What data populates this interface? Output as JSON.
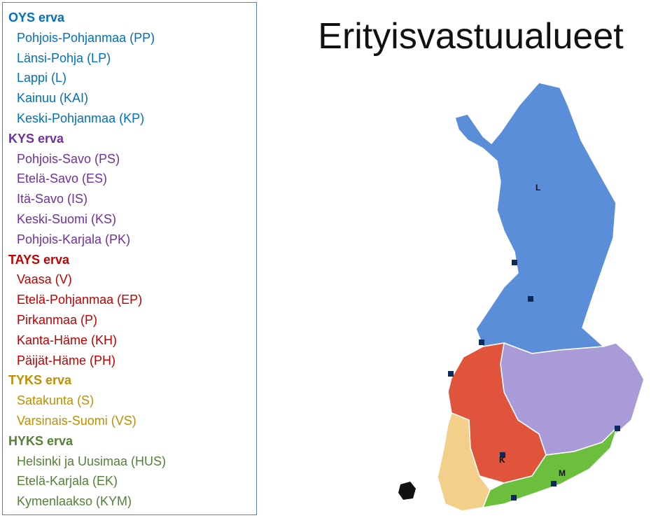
{
  "title": "Erityisvastuualueet",
  "groups": [
    {
      "name": "OYS erva",
      "color": "#0070c0",
      "map_color": "#5b8ed8",
      "items": [
        "Pohjois-Pohjanmaa (PP)",
        "Länsi-Pohja (LP)",
        "Lappi (L)",
        "Kainuu (KAI)",
        "Keski-Pohjanmaa (KP)"
      ]
    },
    {
      "name": "KYS erva",
      "color": "#7030a0",
      "map_color": "#a99bd8",
      "items": [
        "Pohjois-Savo (PS)",
        "Etelä-Savo (ES)",
        "Itä-Savo (IS)",
        "Keski-Suomi (KS)",
        "Pohjois-Karjala (PK)"
      ]
    },
    {
      "name": "TAYS erva",
      "color": "#c00000",
      "map_color": "#e0543c",
      "items": [
        "Vaasa (V)",
        "Etelä-Pohjanmaa (EP)",
        "Pirkanmaa (P)",
        "Kanta-Häme (KH)",
        "Päijät-Häme (PH)"
      ]
    },
    {
      "name": "TYKS erva",
      "color": "#bf8f00",
      "map_color": "#f2d08c",
      "items": [
        "Satakunta (S)",
        "Varsinais-Suomi (VS)"
      ]
    },
    {
      "name": "HYKS erva",
      "color": "#538135",
      "map_color": "#6cbf3c",
      "items": [
        "Helsinki ja Uusimaa (HUS)",
        "Etelä-Karjala (EK)",
        "Kymenlaakso (KYM)"
      ]
    }
  ],
  "map_labels": [
    "L",
    "K",
    "M"
  ]
}
